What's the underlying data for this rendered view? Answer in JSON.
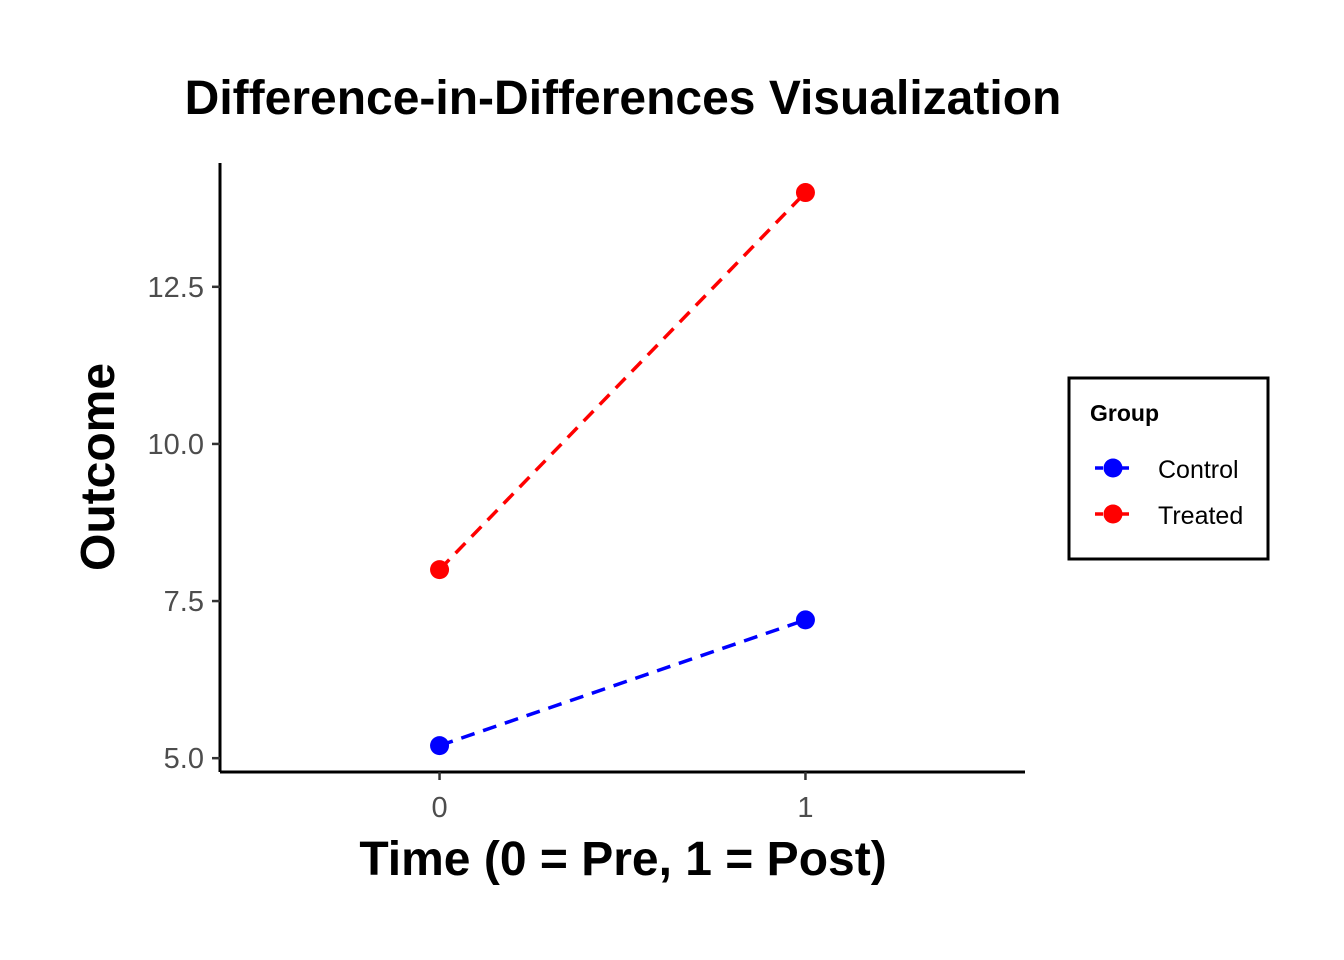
{
  "chart_data": {
    "type": "line",
    "title": "Difference-in-Differences Visualization",
    "xlabel": "Time (0 = Pre, 1 = Post)",
    "ylabel": "Outcome",
    "x": [
      0,
      1
    ],
    "xticks": [
      "0",
      "1"
    ],
    "yticks": [
      "5.0",
      "7.5",
      "10.0",
      "12.5"
    ],
    "ytick_values": [
      5.0,
      7.5,
      10.0,
      12.5
    ],
    "xlim": [
      -0.6,
      1.6
    ],
    "ylim": [
      4.78,
      14.47
    ],
    "grid": false,
    "legend": {
      "title": "Group",
      "placement": "right"
    },
    "series": [
      {
        "name": "Control",
        "values": [
          5.2,
          7.2
        ],
        "color": "#0000ff",
        "linestyle": "dashed",
        "marker": "circle"
      },
      {
        "name": "Treated",
        "values": [
          8.0,
          14.0
        ],
        "color": "#ff0000",
        "linestyle": "dashed",
        "marker": "circle"
      }
    ]
  }
}
